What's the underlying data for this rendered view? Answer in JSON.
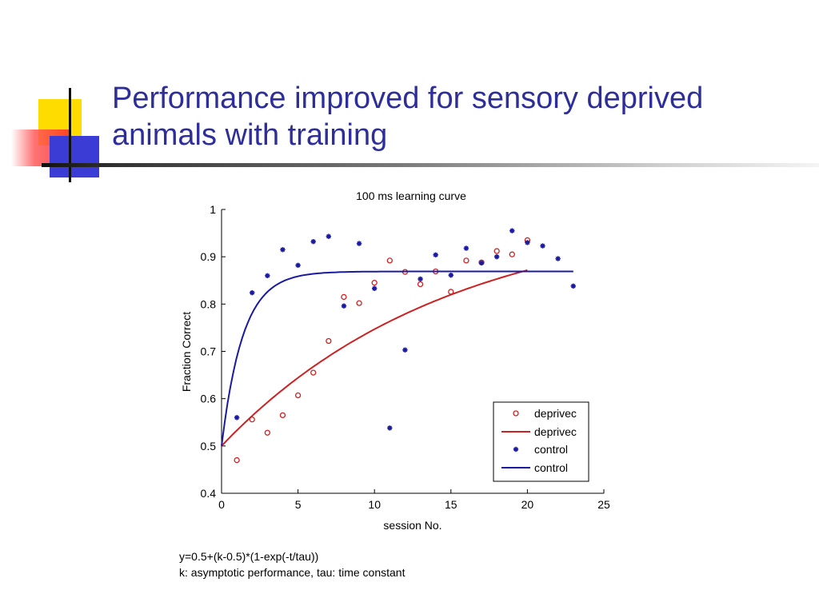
{
  "slide": {
    "title_line1": "Performance improved for sensory deprived",
    "title_line2": "animals with training",
    "footnote_line1": "y=0.5+(k-0.5)*(1-exp(-t/tau))",
    "footnote_line2": "k: asymptotic performance, tau: time constant"
  },
  "colors": {
    "title": "#2e2e9a",
    "deprived": "#cc2222",
    "control": "#1a1aa0"
  },
  "chart_data": {
    "type": "scatter",
    "title": "100 ms learning curve",
    "xlabel": "session No.",
    "ylabel": "Fraction Correct",
    "xlim": [
      0,
      25
    ],
    "ylim": [
      0.4,
      1.0
    ],
    "xticks": [
      0,
      5,
      10,
      15,
      20,
      25
    ],
    "yticks": [
      0.4,
      0.5,
      0.6,
      0.7,
      0.8,
      0.9,
      1.0
    ],
    "ytick_labels": [
      "0.4",
      "0.5",
      "0.6",
      "0.7",
      "0.8",
      "0.9",
      "1"
    ],
    "legend_position": "bottom-right",
    "grid": false,
    "series": [
      {
        "name": "deprivec",
        "kind": "points",
        "marker": "circle",
        "color": "#cc2222",
        "points": [
          [
            1,
            0.47
          ],
          [
            2,
            0.556
          ],
          [
            3,
            0.528
          ],
          [
            4,
            0.565
          ],
          [
            5,
            0.607
          ],
          [
            6,
            0.655
          ],
          [
            7,
            0.722
          ],
          [
            8,
            0.815
          ],
          [
            9,
            0.802
          ],
          [
            10,
            0.845
          ],
          [
            11,
            0.892
          ],
          [
            12,
            0.868
          ],
          [
            13,
            0.842
          ],
          [
            14,
            0.869
          ],
          [
            15,
            0.826
          ],
          [
            16,
            0.892
          ],
          [
            17,
            0.888
          ],
          [
            18,
            0.912
          ],
          [
            19,
            0.905
          ],
          [
            20,
            0.935
          ]
        ]
      },
      {
        "name": "deprivec",
        "kind": "fit",
        "color": "#cc2222",
        "k": 1.0,
        "tau": 14.7,
        "x_range": [
          0,
          20
        ]
      },
      {
        "name": "control",
        "kind": "points",
        "marker": "star",
        "color": "#1a1aa0",
        "points": [
          [
            1,
            0.56
          ],
          [
            2,
            0.824
          ],
          [
            3,
            0.86
          ],
          [
            4,
            0.915
          ],
          [
            5,
            0.882
          ],
          [
            6,
            0.932
          ],
          [
            7,
            0.943
          ],
          [
            8,
            0.796
          ],
          [
            9,
            0.928
          ],
          [
            10,
            0.833
          ],
          [
            11,
            0.538
          ],
          [
            12,
            0.703
          ],
          [
            13,
            0.853
          ],
          [
            14,
            0.904
          ],
          [
            15,
            0.861
          ],
          [
            16,
            0.918
          ],
          [
            17,
            0.887
          ],
          [
            18,
            0.9
          ],
          [
            19,
            0.955
          ],
          [
            20,
            0.93
          ],
          [
            21,
            0.923
          ],
          [
            22,
            0.896
          ],
          [
            23,
            0.838
          ]
        ]
      },
      {
        "name": "control",
        "kind": "fit",
        "color": "#1a1aa0",
        "k": 0.869,
        "tau": 1.4,
        "x_range": [
          0,
          23
        ]
      }
    ]
  }
}
